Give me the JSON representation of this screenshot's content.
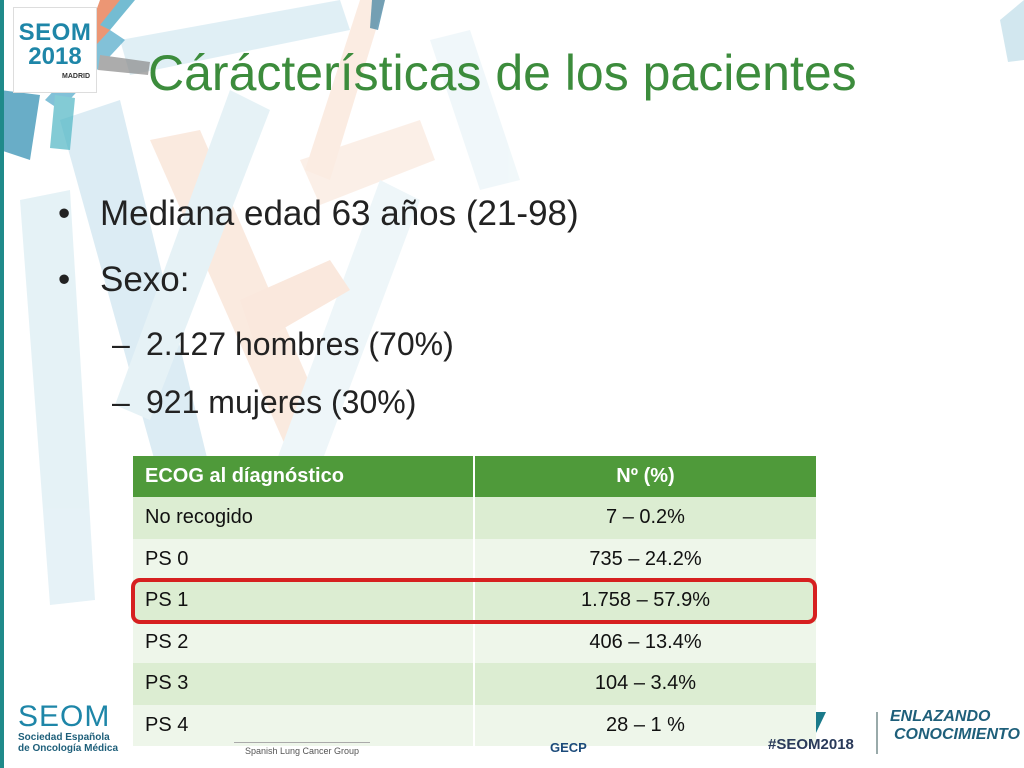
{
  "logo": {
    "line1": "SEOM",
    "line2": "2018",
    "line3": "MADRID"
  },
  "title": "Cárácterísticas de los pacientes",
  "bullets": {
    "age": "Mediana edad 63 años (21-98)",
    "sex": "Sexo:",
    "sex_items": [
      "2.127 hombres (70%)",
      "921 mujeres (30%)"
    ],
    "dash": "–"
  },
  "table": {
    "headers": [
      "ECOG al díagnóstico",
      "Nº (%)"
    ],
    "rows": [
      [
        "No recogido",
        "7 – 0.2%"
      ],
      [
        "PS  0",
        "735 – 24.2%"
      ],
      [
        "PS 1",
        "1.758 – 57.9%"
      ],
      [
        "PS 2",
        "406 – 13.4%"
      ],
      [
        "PS 3",
        "104 – 3.4%"
      ],
      [
        "PS 4",
        "28 – 1 %"
      ]
    ],
    "highlighted_row": "PS 1"
  },
  "footer": {
    "seom_big": "SEOM",
    "seom_line1": "Sociedad  Española",
    "seom_line2": "de Oncología Médica",
    "lung_group": "Spanish Lung Cancer Group",
    "gecp": "GECP",
    "hashtag": "#SEOM2018",
    "enlazando_line1": "ENLAZANDO",
    "enlazando_line2": "CONOCIMIENTO"
  },
  "colors": {
    "title": "#3c8c3c",
    "table_header": "#4f9a3a",
    "row_odd": "#dcedd2",
    "row_even": "#eef6ea",
    "highlight": "#d62020",
    "brand": "#1e86a8"
  }
}
